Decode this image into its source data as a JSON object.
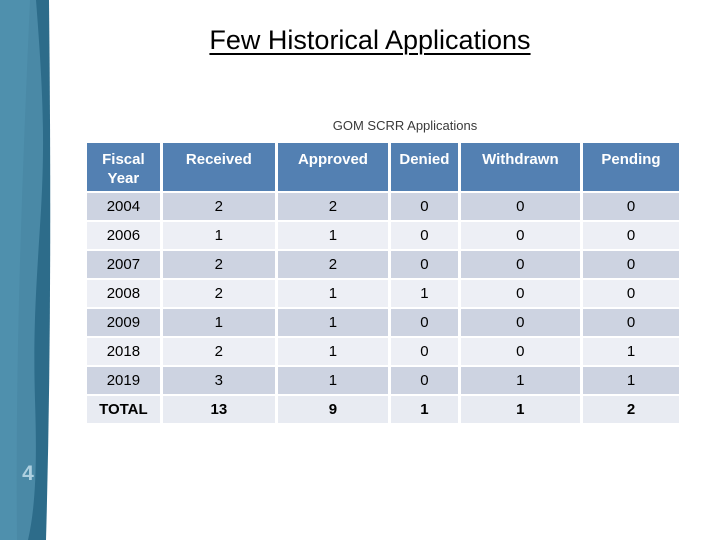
{
  "page_number": "4",
  "title": "Few Historical Applications",
  "table": {
    "caption": "GOM SCRR Applications",
    "columns": [
      "Fiscal Year",
      "Received",
      "Approved",
      "Denied",
      "Withdrawn",
      "Pending"
    ],
    "rows": [
      {
        "label": "2004",
        "values": [
          "2",
          "2",
          "0",
          "0",
          "0"
        ]
      },
      {
        "label": "2006",
        "values": [
          "1",
          "1",
          "0",
          "0",
          "0"
        ]
      },
      {
        "label": "2007",
        "values": [
          "2",
          "2",
          "0",
          "0",
          "0"
        ]
      },
      {
        "label": "2008",
        "values": [
          "2",
          "1",
          "1",
          "0",
          "0"
        ]
      },
      {
        "label": "2009",
        "values": [
          "1",
          "1",
          "0",
          "0",
          "0"
        ]
      },
      {
        "label": "2018",
        "values": [
          "2",
          "1",
          "0",
          "0",
          "1"
        ]
      },
      {
        "label": "2019",
        "values": [
          "3",
          "1",
          "0",
          "1",
          "1"
        ]
      },
      {
        "label": "TOTAL",
        "values": [
          "13",
          "9",
          "1",
          "1",
          "2"
        ]
      }
    ]
  },
  "colors": {
    "header_blue": "#5380b2",
    "band_dark": "#cdd3e1",
    "band_light": "#edeff5",
    "total_row_bg": "#e8ebf2",
    "sidebar_light_teal": "#4a89a6",
    "sidebar_lighter_teal": "#4f90ad",
    "sidebar_dark_teal": "#2d6c8a",
    "page_number_color": "#aed0e0"
  }
}
